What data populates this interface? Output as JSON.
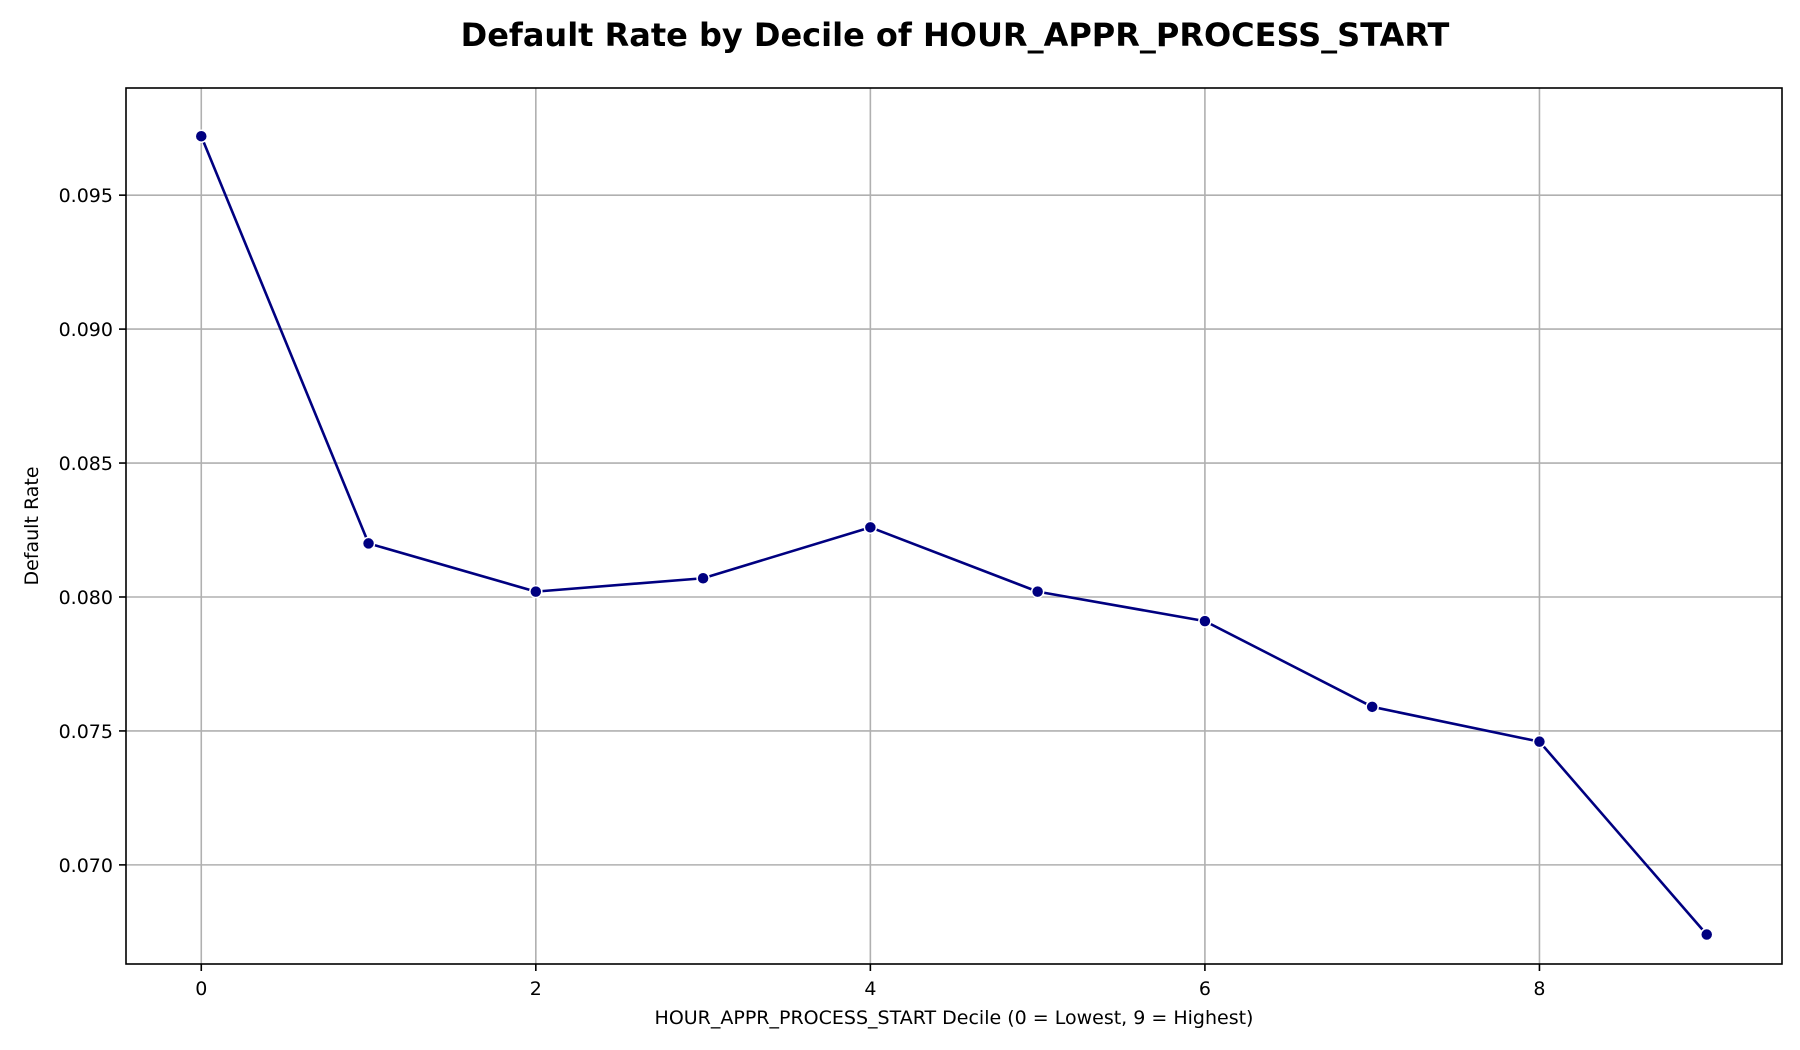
{
  "chart_data": {
    "type": "line",
    "title": "Default Rate by Decile of HOUR_APPR_PROCESS_START",
    "xlabel": "HOUR_APPR_PROCESS_START Decile (0 = Lowest, 9 = Highest)",
    "ylabel": "Default Rate",
    "x": [
      0,
      1,
      2,
      3,
      4,
      5,
      6,
      7,
      8,
      9
    ],
    "series": [
      {
        "values": [
          0.0972,
          0.082,
          0.0802,
          0.0807,
          0.0826,
          0.0802,
          0.0791,
          0.0759,
          0.0746,
          0.0674
        ]
      }
    ],
    "xlim": [
      -0.45,
      9.45
    ],
    "ylim": [
      0.0663,
      0.099
    ],
    "xticks": [
      0,
      2,
      4,
      6,
      8
    ],
    "xtick_labels": [
      "0",
      "2",
      "4",
      "6",
      "8"
    ],
    "yticks": [
      0.07,
      0.075,
      0.08,
      0.085,
      0.09,
      0.095
    ],
    "ytick_labels": [
      "0.070",
      "0.075",
      "0.080",
      "0.085",
      "0.090",
      "0.095"
    ],
    "grid": true,
    "line_color": "#000080",
    "marker_color": "#000080",
    "marker_edge_color": "#ffffff"
  }
}
